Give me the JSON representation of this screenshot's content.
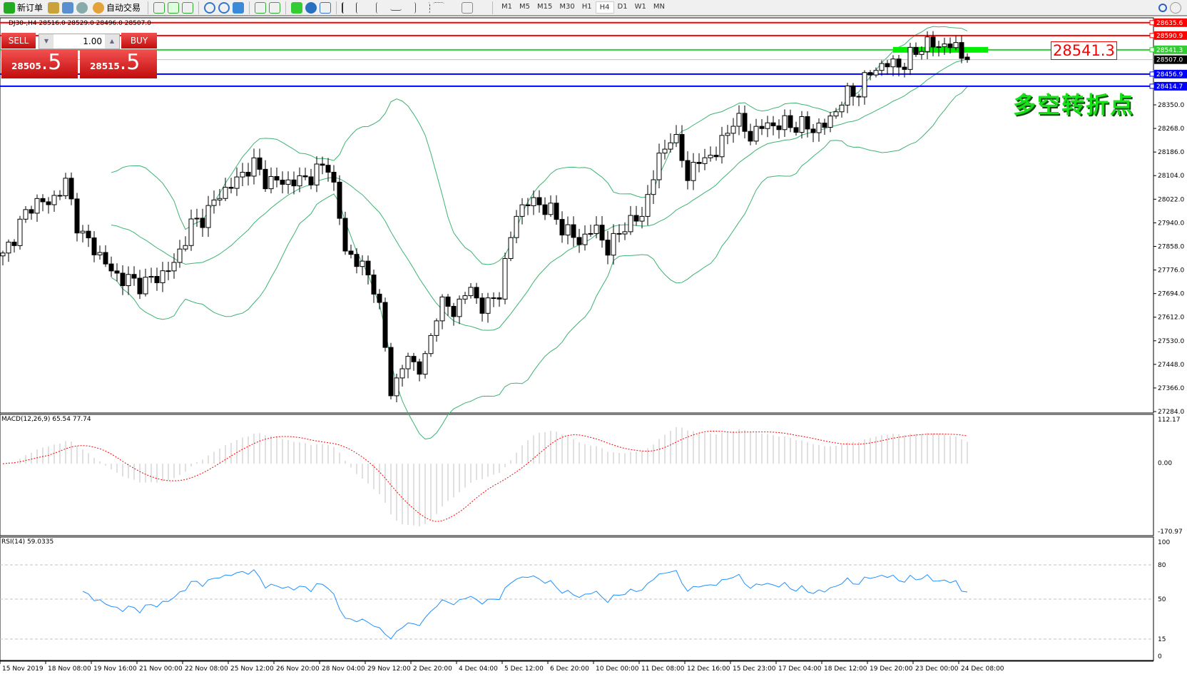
{
  "toolbar": {
    "new_order": "新订单",
    "auto_trading": "自动交易",
    "timeframes": [
      "M1",
      "M5",
      "M15",
      "M30",
      "H1",
      "H4",
      "D1",
      "W1",
      "MN"
    ],
    "active_timeframe": "H4"
  },
  "symbol_header": "DJ30-,H4  28516.0 28529.0 28496.0 28507.0",
  "trade_panel": {
    "sell_label": "SELL",
    "buy_label": "BUY",
    "lot": "1.00",
    "sell_big": "28505",
    "sell_small": ".5",
    "buy_big": "28515",
    "buy_small": ".5",
    "color": "#d41e1e"
  },
  "levels": [
    {
      "price": 28635.6,
      "label": "28635.6",
      "color": "#ff0000"
    },
    {
      "price": 28590.9,
      "label": "28590.9",
      "color": "#ff0000"
    },
    {
      "price": 28541.3,
      "label": "28541.3",
      "color": "#33cc33"
    },
    {
      "price": 28507.0,
      "label": "28507.0",
      "color": "#000000"
    },
    {
      "price": 28456.9,
      "label": "28456.9",
      "color": "#0000ff"
    },
    {
      "price": 28414.7,
      "label": "28414.7",
      "color": "#0000ff"
    }
  ],
  "level_callout": "28541.3",
  "annotation": "多空转折点",
  "price_axis": [
    "28350.0",
    "28268.0",
    "28186.0",
    "28104.0",
    "28022.0",
    "27940.0",
    "27858.0",
    "27776.0",
    "27694.0",
    "27612.0",
    "27530.0",
    "27448.0",
    "27366.0",
    "27284.0"
  ],
  "time_axis": [
    "15 Nov 2019",
    "18 Nov 08:00",
    "19 Nov 16:00",
    "21 Nov 00:00",
    "22 Nov 08:00",
    "25 Nov 12:00",
    "26 Nov 20:00",
    "28 Nov 04:00",
    "29 Nov 12:00",
    "2 Dec 20:00",
    "4 Dec 04:00",
    "5 Dec 12:00",
    "6 Dec 20:00",
    "10 Dec 00:00",
    "11 Dec 08:00",
    "12 Dec 16:00",
    "15 Dec 23:00",
    "17 Dec 04:00",
    "18 Dec 12:00",
    "19 Dec 20:00",
    "23 Dec 00:00",
    "24 Dec 08:00"
  ],
  "macd": {
    "label": "MACD(12,26,9) 65.54 77.74",
    "axis": [
      "112.17",
      "0.00",
      "-170.97"
    ],
    "range": [
      -170.97,
      112.17
    ],
    "hist_color": "#c0c0c0",
    "signal_color": "#ff0000"
  },
  "rsi": {
    "label": "RSI(14) 59.0335",
    "axis": [
      "100",
      "80",
      "50",
      "15",
      "0"
    ],
    "levels": [
      80,
      50,
      15
    ],
    "color": "#1e90ff"
  },
  "chart_data": {
    "type": "candlestick",
    "symbol": "DJ30-",
    "timeframe": "H4",
    "ylim": [
      27284,
      28635.6
    ],
    "last_bar": {
      "open": 28516.0,
      "high": 28529.0,
      "low": 28496.0,
      "close": 28507.0
    },
    "approx_close_path": [
      27820,
      27925,
      28017,
      28004,
      28083,
      27899,
      27846,
      27767,
      27740,
      27727,
      27754,
      27793,
      27925,
      27965,
      28044,
      28083,
      28149,
      28083,
      28083,
      28083,
      28110,
      28149,
      27846,
      27793,
      27714,
      27345,
      27476,
      27424,
      27661,
      27635,
      27714,
      27635,
      27714,
      27978,
      28017,
      27991,
      27925,
      27872,
      27925,
      27846,
      27938,
      27951,
      28136,
      28255,
      28110,
      28162,
      28189,
      28308,
      28242,
      28281,
      28281,
      28281,
      28268,
      28281,
      28374,
      28400,
      28479,
      28492,
      28492,
      28558,
      28558,
      28558,
      28507
    ],
    "bollinger": {
      "color": "#3cb371"
    }
  }
}
